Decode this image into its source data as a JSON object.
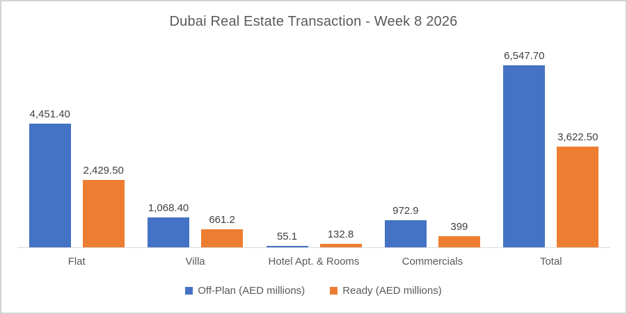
{
  "chart_data": {
    "type": "bar",
    "title": "Dubai Real Estate Transaction - Week 8 2026",
    "categories": [
      "Flat",
      "Villa",
      "Hotel Apt. & Rooms",
      "Commercials",
      "Total"
    ],
    "series": [
      {
        "name": "Off-Plan (AED millions)",
        "color": "#4472C4",
        "values": [
          4451.4,
          1068.4,
          55.1,
          972.9,
          6547.7
        ],
        "labels": [
          "4,451.40",
          "1,068.40",
          "55.1",
          "972.9",
          "6,547.70"
        ]
      },
      {
        "name": "Ready (AED millions)",
        "color": "#ED7D31",
        "values": [
          2429.5,
          661.2,
          132.8,
          399,
          3622.5
        ],
        "labels": [
          "2,429.50",
          "661.2",
          "132.8",
          "399",
          "3,622.50"
        ]
      }
    ],
    "xlabel": "",
    "ylabel": "",
    "ylim": [
      0,
      7000
    ],
    "grid": false,
    "legend_position": "bottom"
  },
  "colors": {
    "title_text": "#595959",
    "axis_label_text": "#595959",
    "data_label_text": "#404040",
    "axis_line": "#D9D9D9",
    "frame_border": "#D2D2D2",
    "background": "#FFFFFF"
  }
}
